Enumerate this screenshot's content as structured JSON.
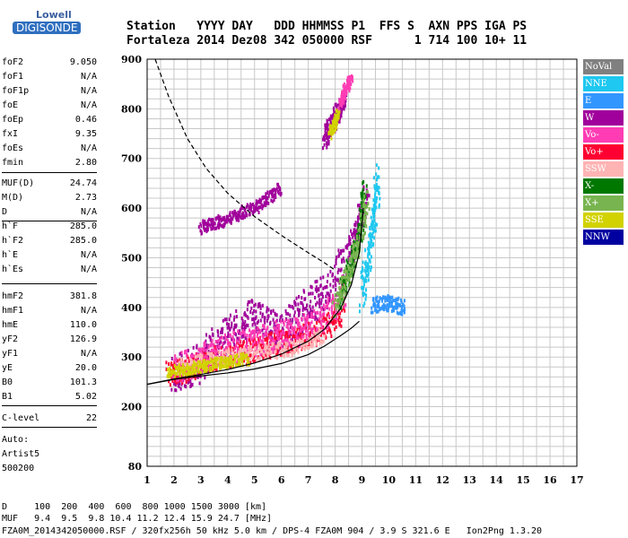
{
  "logo": {
    "line1": "Lowell",
    "line2": "DIGISONDE"
  },
  "header": {
    "line1": "Station   YYYY DAY   DDD HHMMSS P1  FFS S  AXN PPS IGA PS",
    "line2": "Fortaleza 2014 Dez08 342 050000 RSF      1 714 100 10+ 11"
  },
  "params": [
    {
      "key": "foF2",
      "value": "9.050"
    },
    {
      "key": "foF1",
      "value": "N/A"
    },
    {
      "key": "foF1p",
      "value": "N/A"
    },
    {
      "key": "foE",
      "value": "N/A"
    },
    {
      "key": "foEp",
      "value": "0.46"
    },
    {
      "key": "fxI",
      "value": "9.35"
    },
    {
      "key": "foEs",
      "value": "N/A"
    },
    {
      "key": "fmin",
      "value": "2.80"
    },
    {
      "key": "MUF(D)",
      "value": "24.74"
    },
    {
      "key": "M(D)",
      "value": "2.73"
    },
    {
      "key": "D",
      "value": "N/A"
    },
    {
      "key": "h`F",
      "value": "285.0"
    },
    {
      "key": "h`F2",
      "value": "285.0"
    },
    {
      "key": "h`E",
      "value": "N/A"
    },
    {
      "key": "h`Es",
      "value": "N/A"
    },
    {
      "key": "hmF2",
      "value": "381.8"
    },
    {
      "key": "hmF1",
      "value": "N/A"
    },
    {
      "key": "hmE",
      "value": "110.0"
    },
    {
      "key": "yF2",
      "value": "126.9"
    },
    {
      "key": "yF1",
      "value": "N/A"
    },
    {
      "key": "yE",
      "value": "20.0"
    },
    {
      "key": "B0",
      "value": "101.3"
    },
    {
      "key": "B1",
      "value": "5.02"
    },
    {
      "key": "C-level",
      "value": "22"
    }
  ],
  "auto": {
    "line1": "Auto:",
    "line2": "Artist5",
    "line3": "500200"
  },
  "legend": [
    {
      "label": "NoVal",
      "color": "#808080"
    },
    {
      "label": "NNE",
      "color": "#1ec8f0"
    },
    {
      "label": "E",
      "color": "#3296ff"
    },
    {
      "label": "W",
      "color": "#a0009b"
    },
    {
      "label": "Vo-",
      "color": "#ff3cb4"
    },
    {
      "label": "Vo+",
      "color": "#ff0032"
    },
    {
      "label": "SSW",
      "color": "#ffb4b4"
    },
    {
      "label": "X-",
      "color": "#007800"
    },
    {
      "label": "X+",
      "color": "#78b450"
    },
    {
      "label": "SSE",
      "color": "#d2d200"
    },
    {
      "label": "NNW",
      "color": "#0000a0"
    }
  ],
  "footer": {
    "line1": "D     100  200  400  600  800 1000 1500 3000 [km]",
    "line2": "MUF   9.4  9.5  9.8 10.4 11.2 12.4 15.9 24.7 [MHz]",
    "line3": "FZA0M_2014342050000.RSF / 320fx256h 50 kHz 5.0 km / DPS-4 FZA0M 904 / 3.9 S 321.6 E   Ion2Png 1.3.20"
  },
  "chart_data": {
    "type": "scatter",
    "xlim": [
      1,
      17
    ],
    "ylim": [
      80,
      900
    ],
    "xticks": [
      1,
      2,
      3,
      4,
      5,
      6,
      7,
      8,
      9,
      10,
      11,
      12,
      13,
      14,
      15,
      16,
      17
    ],
    "yticks": [
      80,
      200,
      300,
      400,
      500,
      600,
      700,
      800,
      900
    ],
    "grid": true,
    "curves": [
      {
        "name": "dashed",
        "style": "dashed",
        "x": [
          1.3,
          1.8,
          2.5,
          3.2,
          4.0,
          5.0,
          6.0,
          7.0,
          7.6,
          8.0
        ],
        "y": [
          900,
          825,
          740,
          680,
          630,
          583,
          545,
          510,
          490,
          475
        ]
      },
      {
        "name": "profile",
        "style": "solid",
        "x": [
          1.0,
          2.0,
          3.0,
          4.0,
          5.0,
          6.0,
          7.0,
          7.6,
          8.2,
          8.6,
          8.9,
          9.05
        ],
        "y": [
          245,
          256,
          265,
          275,
          288,
          306,
          332,
          356,
          398,
          445,
          510,
          600
        ]
      },
      {
        "name": "virtual",
        "style": "solid",
        "x": [
          1.0,
          2.0,
          3.0,
          4.0,
          5.0,
          6.0,
          7.0,
          7.6,
          8.2,
          8.6,
          8.9
        ],
        "y": [
          245,
          255,
          262,
          268,
          276,
          287,
          305,
          322,
          343,
          358,
          372
        ]
      }
    ],
    "traces": [
      {
        "color": "#a0009b",
        "x": [
          2,
          2.5,
          3,
          3.5,
          4,
          4.5,
          5,
          5.5,
          6,
          6.5,
          7,
          7.5,
          8,
          8.5,
          8.8,
          9,
          9.2
        ],
        "y": [
          270,
          275,
          290,
          320,
          345,
          360,
          380,
          360,
          350,
          380,
          400,
          420,
          460,
          500,
          540,
          580,
          620
        ],
        "spread": 40
      },
      {
        "color": "#ff0032",
        "x": [
          1.8,
          2.3,
          2.8,
          3.3,
          3.8,
          4.3,
          4.8,
          5.3,
          5.8,
          6.3,
          6.8,
          7.3,
          7.8,
          8.3
        ],
        "y": [
          268,
          272,
          280,
          292,
          300,
          305,
          310,
          318,
          325,
          330,
          340,
          350,
          365,
          390
        ],
        "spread": 25
      },
      {
        "color": "#ff3cb4",
        "x": [
          2,
          2.6,
          3.2,
          3.8,
          4.4,
          5,
          5.6,
          6.2,
          6.8,
          7.4,
          8,
          8.4
        ],
        "y": [
          275,
          285,
          300,
          315,
          322,
          330,
          340,
          345,
          352,
          370,
          400,
          440
        ],
        "spread": 30
      },
      {
        "color": "#ffb4b4",
        "x": [
          2.2,
          3,
          3.8,
          4.6,
          5.4,
          6.2,
          7,
          7.6
        ],
        "y": [
          280,
          290,
          300,
          305,
          310,
          315,
          330,
          345
        ],
        "spread": 15
      },
      {
        "color": "#d2d200",
        "x": [
          1.8,
          2.3,
          2.8,
          3.3,
          3.8,
          4.3,
          4.8
        ],
        "y": [
          270,
          272,
          278,
          284,
          288,
          292,
          296
        ],
        "spread": 12
      },
      {
        "color": "#007800",
        "x": [
          8.2,
          8.5,
          8.8,
          9.0,
          9.1
        ],
        "y": [
          420,
          470,
          520,
          580,
          640
        ],
        "spread": 25
      },
      {
        "color": "#78b450",
        "x": [
          8.0,
          8.4,
          8.7,
          9.0,
          9.2
        ],
        "y": [
          400,
          450,
          500,
          560,
          620
        ],
        "spread": 25
      },
      {
        "color": "#1ec8f0",
        "x": [
          9.0,
          9.2,
          9.35,
          9.5,
          9.6
        ],
        "y": [
          430,
          480,
          540,
          600,
          660
        ],
        "spread": 40
      },
      {
        "color": "#3296ff",
        "x": [
          9.4,
          9.8,
          10.2,
          10.6
        ],
        "y": [
          400,
          410,
          405,
          400
        ],
        "spread": 15
      },
      {
        "color": "#a0009b",
        "x": [
          7.6,
          7.8,
          8.0,
          8.2,
          8.4
        ],
        "y": [
          740,
          760,
          780,
          800,
          830
        ],
        "spread": 20
      },
      {
        "color": "#a0009b",
        "x": [
          3,
          3.5,
          4,
          4.5,
          5,
          5.5,
          6
        ],
        "y": [
          560,
          570,
          575,
          590,
          600,
          620,
          640
        ],
        "spread": 12
      },
      {
        "color": "#d2d200",
        "x": [
          7.8,
          8.0,
          8.1
        ],
        "y": [
          750,
          770,
          790
        ],
        "spread": 10
      },
      {
        "color": "#ff3cb4",
        "x": [
          8.2,
          8.4,
          8.6
        ],
        "y": [
          810,
          840,
          860
        ],
        "spread": 10
      }
    ]
  }
}
